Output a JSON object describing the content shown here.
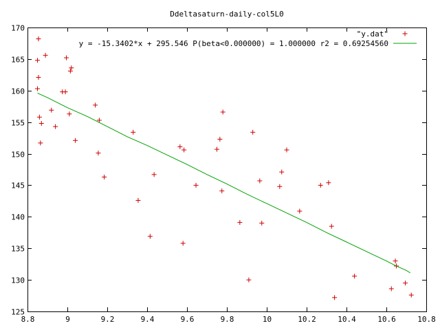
{
  "chart_data": {
    "type": "scatter",
    "title": "Ddeltasaturn-daily-col5L0",
    "xlabel": "",
    "ylabel": "",
    "xlim": [
      8.8,
      10.8
    ],
    "ylim": [
      125,
      170
    ],
    "x_ticks": [
      "8.8",
      "9",
      "9.2",
      "9.4",
      "9.6",
      "9.8",
      "10",
      "10.2",
      "10.4",
      "10.6",
      "10.8"
    ],
    "y_ticks": [
      "125",
      "130",
      "135",
      "140",
      "145",
      "150",
      "155",
      "160",
      "165",
      "170"
    ],
    "grid": false,
    "legend_position": "top-right",
    "series": [
      {
        "name": "\"y.dat\"",
        "kind": "points",
        "marker": "plus",
        "color": "#cc0000",
        "x": [
          8.85,
          8.85,
          8.855,
          8.855,
          8.86,
          8.865,
          8.87,
          8.89,
          8.92,
          8.94,
          8.975,
          8.99,
          8.995,
          9.01,
          9.015,
          9.02,
          9.04,
          9.14,
          9.155,
          9.16,
          9.185,
          9.33,
          9.355,
          9.415,
          9.435,
          9.565,
          9.58,
          9.585,
          9.645,
          9.75,
          9.765,
          9.775,
          9.78,
          9.865,
          9.91,
          9.93,
          9.965,
          9.975,
          10.065,
          10.075,
          10.1,
          10.165,
          10.27,
          10.31,
          10.325,
          10.34,
          10.44,
          10.625,
          10.645,
          10.65,
          10.695,
          10.725
        ],
        "y": [
          164.8,
          160.3,
          168.2,
          162.1,
          155.8,
          151.7,
          154.8,
          165.6,
          156.9,
          154.3,
          159.8,
          159.8,
          165.2,
          156.3,
          163.1,
          163.6,
          152.1,
          157.7,
          150.1,
          155.3,
          146.3,
          153.4,
          142.6,
          136.9,
          146.7,
          151.1,
          135.8,
          150.6,
          145.0,
          150.7,
          152.3,
          144.1,
          156.6,
          139.1,
          130.0,
          153.4,
          145.7,
          139.0,
          144.8,
          147.1,
          150.6,
          140.9,
          145.0,
          145.4,
          138.5,
          127.2,
          130.6,
          128.6,
          133.0,
          132.2,
          129.5,
          127.6
        ]
      },
      {
        "name": "y = -15.3402*x + 295.546 P(beta<0.000000) = 1.000000 r2 = 0.69254560",
        "kind": "line",
        "color": "#00a000",
        "x": [
          8.85,
          8.9,
          9.0,
          9.1,
          9.2,
          9.3,
          9.4,
          9.5,
          9.6,
          9.7,
          9.8,
          9.9,
          10.0,
          10.1,
          10.2,
          10.3,
          10.4,
          10.5,
          10.6,
          10.65,
          10.7,
          10.72
        ],
        "y": [
          159.6,
          158.9,
          157.3,
          155.9,
          154.3,
          152.7,
          151.3,
          149.8,
          148.3,
          146.7,
          145.2,
          143.6,
          142.1,
          140.6,
          139.1,
          137.5,
          136.0,
          134.5,
          133.0,
          132.2,
          131.5,
          131.1
        ]
      }
    ]
  }
}
